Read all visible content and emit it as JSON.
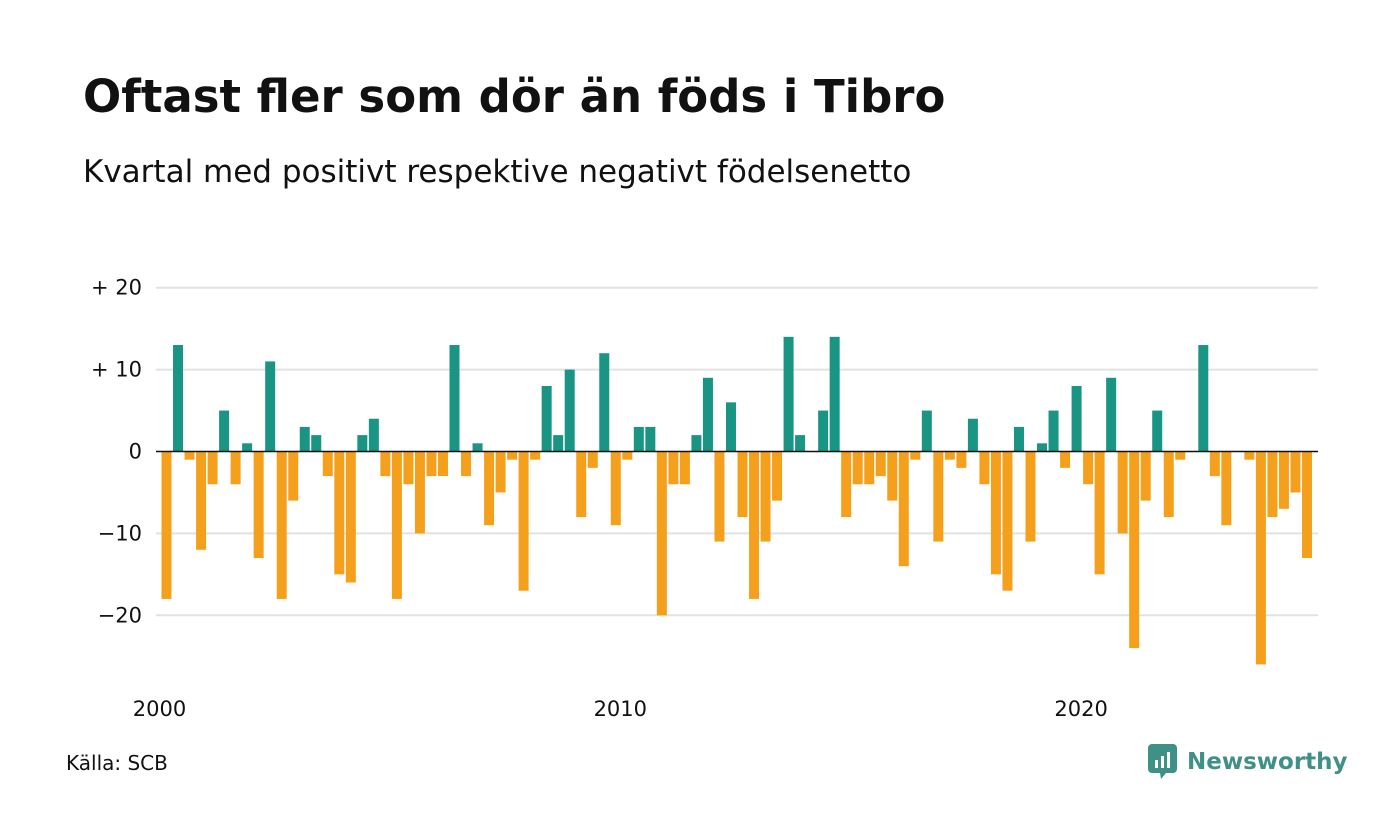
{
  "title": "Oftast fler som dör än föds i Tibro",
  "subtitle": "Kvartal med positivt respektive negativt födelsenetto",
  "source": "Källa: SCB",
  "brand": {
    "name": "Newsworthy",
    "icon": "newsworthy-logo-icon",
    "color": "#3f9188"
  },
  "colors": {
    "positive": "#1a9583",
    "negative": "#f5a01d",
    "grid": "#e2e2e2",
    "zero_line": "#111111"
  },
  "chart_data": {
    "type": "bar",
    "title": "Oftast fler som dör än föds i Tibro",
    "subtitle": "Kvartal med positivt respektive negativt födelsenetto",
    "xlabel": "",
    "ylabel": "",
    "x_start_year": 2000,
    "periods_per_year": 4,
    "x_ticks": [
      {
        "value": 2000,
        "label": "2000"
      },
      {
        "value": 2010,
        "label": "2010"
      },
      {
        "value": 2020,
        "label": "2020"
      }
    ],
    "y_ticks": [
      {
        "value": 20,
        "label": "+ 20"
      },
      {
        "value": 10,
        "label": "+ 10"
      },
      {
        "value": 0,
        "label": "0"
      },
      {
        "value": -10,
        "label": "−10"
      },
      {
        "value": -20,
        "label": "−20"
      }
    ],
    "ylim": [
      -26,
      20
    ],
    "grid": true,
    "legend": "none",
    "values": [
      -18,
      13,
      -1,
      -12,
      -4,
      5,
      -4,
      1,
      -13,
      11,
      -18,
      -6,
      3,
      2,
      -3,
      -15,
      -16,
      2,
      4,
      -3,
      -18,
      -4,
      -10,
      -3,
      -3,
      13,
      -3,
      1,
      -9,
      -5,
      -1,
      -17,
      -1,
      8,
      2,
      10,
      -8,
      -2,
      12,
      -9,
      -1,
      3,
      3,
      -20,
      -4,
      -4,
      2,
      9,
      -11,
      6,
      -8,
      -18,
      -11,
      -6,
      14,
      2,
      0,
      5,
      14,
      -8,
      -4,
      -4,
      -3,
      -6,
      -14,
      -1,
      5,
      -11,
      -1,
      -2,
      4,
      -4,
      -15,
      -17,
      3,
      -11,
      1,
      5,
      -2,
      8,
      -4,
      -15,
      9,
      -10,
      -24,
      -6,
      5,
      -8,
      -1,
      0,
      13,
      -3,
      -9,
      0,
      -1,
      -26,
      -8,
      -7,
      -5,
      -13
    ]
  }
}
